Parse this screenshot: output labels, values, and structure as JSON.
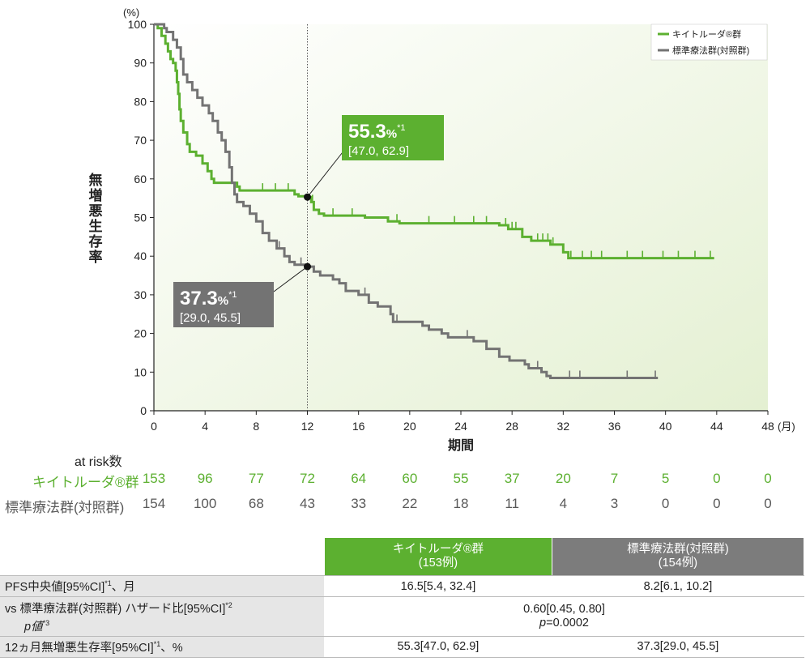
{
  "chart_data": {
    "type": "line",
    "subtype": "kaplan-meier",
    "y_unit": "(%)",
    "x_unit": "(月)",
    "ylabel": "無増悪生存率",
    "xlabel": "期間",
    "xlim": [
      0,
      48
    ],
    "ylim": [
      0,
      100
    ],
    "x_ticks": [
      0,
      4,
      8,
      12,
      16,
      20,
      24,
      28,
      32,
      36,
      40,
      44,
      48
    ],
    "y_ticks": [
      0,
      10,
      20,
      30,
      40,
      50,
      60,
      70,
      80,
      90,
      100
    ],
    "marker_x": 12,
    "legend": [
      "キイトルーダ®群",
      "標準療法群(対照群)"
    ],
    "series": [
      {
        "name": "キイトルーダ®群",
        "color": "#5cb030",
        "points": [
          [
            0,
            100
          ],
          [
            0.3,
            99
          ],
          [
            0.6,
            97
          ],
          [
            0.9,
            95
          ],
          [
            1.1,
            93
          ],
          [
            1.3,
            91
          ],
          [
            1.5,
            90
          ],
          [
            1.7,
            88
          ],
          [
            1.8,
            85
          ],
          [
            1.9,
            82
          ],
          [
            2.0,
            78
          ],
          [
            2.1,
            75
          ],
          [
            2.3,
            72
          ],
          [
            2.6,
            69
          ],
          [
            2.8,
            67
          ],
          [
            3.3,
            66
          ],
          [
            3.8,
            64
          ],
          [
            4.2,
            62
          ],
          [
            4.5,
            60
          ],
          [
            4.7,
            59
          ],
          [
            6.5,
            58
          ],
          [
            6.7,
            57
          ],
          [
            11.0,
            56
          ],
          [
            11.3,
            55.5
          ],
          [
            12.0,
            55.3
          ],
          [
            12.3,
            54
          ],
          [
            12.5,
            52
          ],
          [
            12.9,
            51
          ],
          [
            13.3,
            50.5
          ],
          [
            16.5,
            50
          ],
          [
            18.3,
            49
          ],
          [
            19.2,
            48.5
          ],
          [
            27.0,
            48
          ],
          [
            27.7,
            47
          ],
          [
            28.8,
            45
          ],
          [
            29.5,
            44
          ],
          [
            31.0,
            43
          ],
          [
            32.0,
            41
          ],
          [
            32.4,
            39.5
          ],
          [
            43.8,
            39.5
          ]
        ],
        "censor_x": [
          4.2,
          8.5,
          9.5,
          10.5,
          12.4,
          14.0,
          15.5,
          19.0,
          21.5,
          23.5,
          25.0,
          26.0,
          27.5,
          28.0,
          28.3,
          30.0,
          30.4,
          30.8,
          31.2,
          32.6,
          33.5,
          34.2,
          35.0,
          37.0,
          38.2,
          39.8,
          41.0,
          42.3,
          43.5
        ]
      },
      {
        "name": "標準療法群(対照群)",
        "color": "#737373",
        "points": [
          [
            0,
            100
          ],
          [
            0.8,
            99
          ],
          [
            1.0,
            98
          ],
          [
            1.5,
            96
          ],
          [
            1.8,
            94
          ],
          [
            2.1,
            91
          ],
          [
            2.3,
            87
          ],
          [
            2.6,
            85
          ],
          [
            3.0,
            83
          ],
          [
            3.4,
            81
          ],
          [
            3.8,
            79
          ],
          [
            4.3,
            77
          ],
          [
            4.6,
            75
          ],
          [
            5.0,
            72
          ],
          [
            5.3,
            70
          ],
          [
            5.6,
            67
          ],
          [
            5.9,
            63
          ],
          [
            6.1,
            59
          ],
          [
            6.3,
            56
          ],
          [
            6.5,
            54
          ],
          [
            7.0,
            53
          ],
          [
            7.5,
            51
          ],
          [
            8.0,
            49
          ],
          [
            8.5,
            46
          ],
          [
            9.0,
            44
          ],
          [
            9.6,
            42
          ],
          [
            10.2,
            40
          ],
          [
            10.6,
            38.5
          ],
          [
            11.0,
            37.8
          ],
          [
            12.0,
            37.3
          ],
          [
            12.5,
            36
          ],
          [
            13.0,
            35
          ],
          [
            14.0,
            34
          ],
          [
            14.5,
            33
          ],
          [
            15.0,
            31
          ],
          [
            16.0,
            30
          ],
          [
            16.8,
            28
          ],
          [
            17.5,
            27
          ],
          [
            18.5,
            25
          ],
          [
            18.7,
            23
          ],
          [
            21.0,
            22
          ],
          [
            21.5,
            21
          ],
          [
            22.5,
            20
          ],
          [
            23.0,
            19
          ],
          [
            25.0,
            18
          ],
          [
            26.0,
            16
          ],
          [
            27.0,
            14
          ],
          [
            27.8,
            13
          ],
          [
            29.0,
            12
          ],
          [
            29.3,
            11
          ],
          [
            30.3,
            10
          ],
          [
            30.7,
            9
          ],
          [
            31.0,
            8.5
          ],
          [
            39.4,
            8.5
          ]
        ],
        "censor_x": [
          9.8,
          11.5,
          16.5,
          19.0,
          24.5,
          27.0,
          30.0,
          32.5,
          33.3,
          37.0,
          39.2
        ]
      }
    ],
    "annotations": [
      {
        "series": "キイトルーダ®群",
        "value": "55.3",
        "unit": "%",
        "note": "*1",
        "ci": "[47.0, 62.9]",
        "x": 12,
        "y": 55.3
      },
      {
        "series": "標準療法群(対照群)",
        "value": "37.3",
        "unit": "%",
        "note": "*1",
        "ci": "[29.0, 45.5]",
        "x": 12,
        "y": 37.3
      }
    ]
  },
  "at_risk": {
    "header": "at risk数",
    "rows": [
      {
        "label": "キイトルーダ®群",
        "values": [
          "153",
          "96",
          "77",
          "72",
          "64",
          "60",
          "55",
          "37",
          "20",
          "7",
          "5",
          "0",
          "0"
        ]
      },
      {
        "label": "標準療法群(対照群)",
        "values": [
          "154",
          "100",
          "68",
          "43",
          "33",
          "22",
          "18",
          "11",
          "4",
          "3",
          "0",
          "0",
          "0"
        ]
      }
    ]
  },
  "summary": {
    "col_keytruda": "キイトルーダ®群",
    "col_keytruda_n": "(153例)",
    "col_std": "標準療法群(対照群)",
    "col_std_n": "(154例)",
    "row1_label": "PFS中央値[95%CI]",
    "row1_sup": "*1",
    "row1_suffix": "、月",
    "row1_keytruda": "16.5[5.4, 32.4]",
    "row1_std": "8.2[6.1, 10.2]",
    "row2_label": "vs 標準療法群(対照群) ハザード比[95%CI]",
    "row2_sup": "*2",
    "row2_label2": "p値",
    "row2_sup2": "*3",
    "row2_value": "0.60[0.45, 0.80]",
    "row2_p_label": "p",
    "row2_p_value": "=0.0002",
    "row3_label": "12ヵ月無増悪生存率[95%CI]",
    "row3_sup": "*1",
    "row3_suffix": "、%",
    "row3_keytruda": "55.3[47.0, 62.9]",
    "row3_std": "37.3[29.0, 45.5]"
  }
}
